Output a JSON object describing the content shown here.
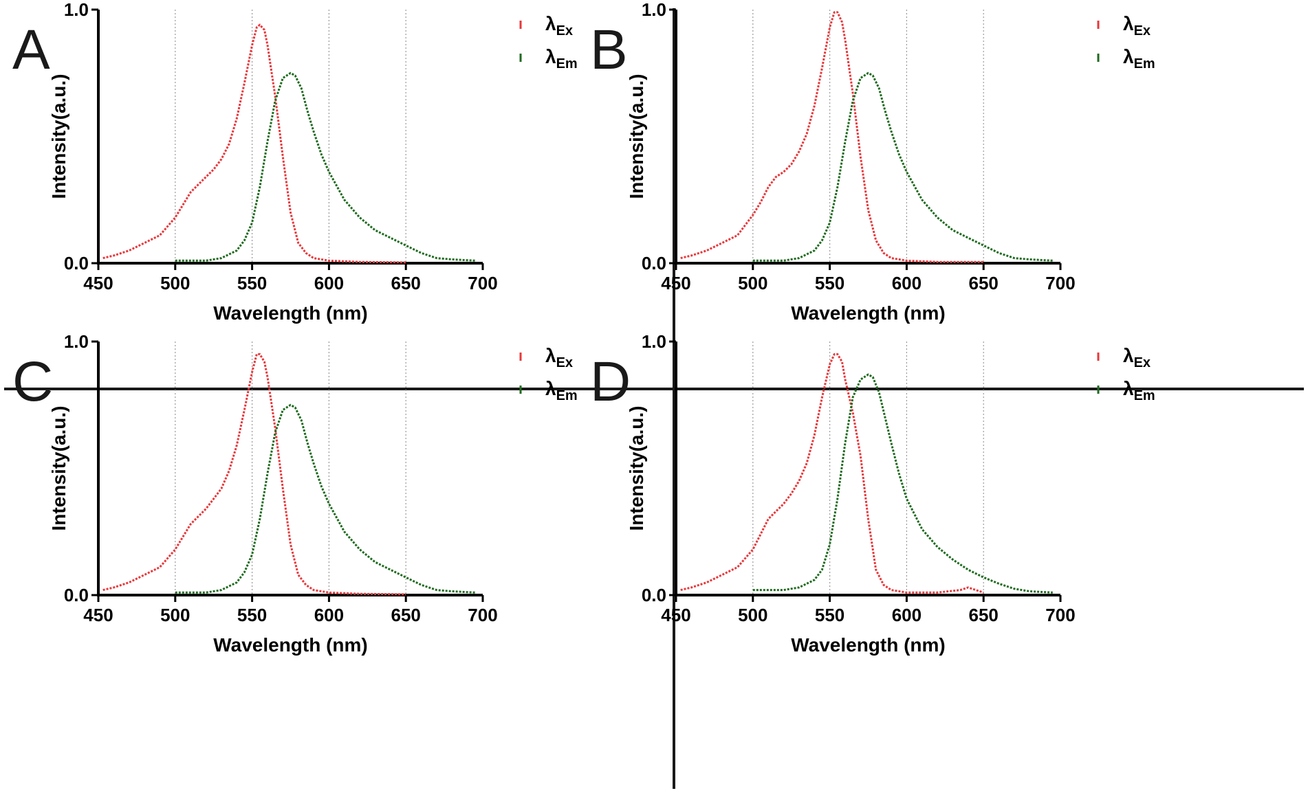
{
  "figure": {
    "colors": {
      "excitation": "#e8383b",
      "emission": "#1f6b1f",
      "axis": "#000000",
      "grid": "#999999",
      "divider": "#1a1a1a"
    }
  },
  "chart_data": [
    {
      "panel": "A",
      "type": "line",
      "xlabel": "Wavelength (nm)",
      "ylabel": "Intensity(a.u.)",
      "xlim": [
        450,
        700
      ],
      "ylim": [
        0,
        1
      ],
      "xticks": [
        "450",
        "500",
        "550",
        "600",
        "650",
        "700"
      ],
      "yticks": [
        "0.0",
        "1.0"
      ],
      "vgrid": [
        500,
        550,
        600,
        650
      ],
      "legend": [
        {
          "symbol": "λ",
          "sub": "Ex"
        },
        {
          "symbol": "λ",
          "sub": "Em"
        }
      ],
      "series": [
        {
          "name": "λEx",
          "x": [
            453,
            460,
            470,
            480,
            490,
            500,
            505,
            510,
            515,
            520,
            525,
            530,
            535,
            540,
            545,
            550,
            553,
            555,
            558,
            560,
            565,
            570,
            575,
            580,
            585,
            590,
            600,
            620,
            650
          ],
          "y": [
            0.02,
            0.03,
            0.05,
            0.08,
            0.11,
            0.18,
            0.23,
            0.28,
            0.31,
            0.34,
            0.37,
            0.41,
            0.47,
            0.57,
            0.71,
            0.86,
            0.93,
            0.94,
            0.92,
            0.86,
            0.66,
            0.42,
            0.2,
            0.08,
            0.04,
            0.02,
            0.01,
            0.005,
            0.003
          ]
        },
        {
          "name": "λEm",
          "x": [
            500,
            520,
            530,
            540,
            545,
            550,
            555,
            560,
            565,
            570,
            575,
            578,
            582,
            586,
            590,
            595,
            600,
            610,
            620,
            630,
            640,
            650,
            660,
            670,
            680,
            695
          ],
          "y": [
            0.01,
            0.01,
            0.02,
            0.05,
            0.09,
            0.16,
            0.3,
            0.48,
            0.64,
            0.73,
            0.75,
            0.74,
            0.69,
            0.6,
            0.52,
            0.43,
            0.36,
            0.25,
            0.18,
            0.13,
            0.1,
            0.07,
            0.04,
            0.02,
            0.015,
            0.01
          ]
        }
      ]
    },
    {
      "panel": "B",
      "type": "line",
      "xlabel": "Wavelength (nm)",
      "ylabel": "Intensity(a.u.)",
      "xlim": [
        450,
        700
      ],
      "ylim": [
        0,
        1
      ],
      "xticks": [
        "450",
        "500",
        "550",
        "600",
        "650",
        "700"
      ],
      "yticks": [
        "0.0",
        "1.0"
      ],
      "vgrid": [
        500,
        550,
        600,
        650
      ],
      "legend": [
        {
          "symbol": "λ",
          "sub": "Ex"
        },
        {
          "symbol": "λ",
          "sub": "Em"
        }
      ],
      "series": [
        {
          "name": "λEx",
          "x": [
            453,
            460,
            470,
            480,
            490,
            500,
            505,
            510,
            515,
            520,
            525,
            530,
            535,
            540,
            545,
            550,
            553,
            555,
            558,
            560,
            565,
            570,
            575,
            580,
            585,
            590,
            600,
            620,
            650
          ],
          "y": [
            0.02,
            0.03,
            0.05,
            0.08,
            0.11,
            0.19,
            0.24,
            0.3,
            0.34,
            0.36,
            0.39,
            0.44,
            0.51,
            0.62,
            0.77,
            0.93,
            0.99,
            0.99,
            0.95,
            0.88,
            0.67,
            0.42,
            0.21,
            0.09,
            0.04,
            0.02,
            0.01,
            0.005,
            0.005
          ]
        },
        {
          "name": "λEm",
          "x": [
            500,
            520,
            530,
            540,
            545,
            550,
            555,
            560,
            565,
            570,
            575,
            578,
            582,
            586,
            590,
            595,
            600,
            610,
            620,
            630,
            640,
            650,
            660,
            670,
            680,
            695
          ],
          "y": [
            0.01,
            0.01,
            0.02,
            0.05,
            0.09,
            0.16,
            0.3,
            0.48,
            0.64,
            0.73,
            0.75,
            0.74,
            0.69,
            0.6,
            0.52,
            0.43,
            0.36,
            0.25,
            0.18,
            0.13,
            0.1,
            0.07,
            0.04,
            0.02,
            0.015,
            0.01
          ]
        }
      ]
    },
    {
      "panel": "C",
      "type": "line",
      "xlabel": "Wavelength (nm)",
      "ylabel": "Intensity(a.u.)",
      "xlim": [
        450,
        700
      ],
      "ylim": [
        0,
        1
      ],
      "xticks": [
        "450",
        "500",
        "550",
        "600",
        "650",
        "700"
      ],
      "yticks": [
        "0.0",
        "1.0"
      ],
      "vgrid": [
        500,
        550,
        600,
        650
      ],
      "legend": [
        {
          "symbol": "λ",
          "sub": "Ex"
        },
        {
          "symbol": "λ",
          "sub": "Em"
        }
      ],
      "series": [
        {
          "name": "λEx",
          "x": [
            453,
            460,
            470,
            480,
            490,
            500,
            505,
            510,
            515,
            520,
            525,
            530,
            535,
            540,
            545,
            550,
            553,
            555,
            558,
            560,
            565,
            570,
            575,
            580,
            585,
            590,
            600,
            620,
            650
          ],
          "y": [
            0.02,
            0.03,
            0.05,
            0.08,
            0.11,
            0.18,
            0.23,
            0.28,
            0.31,
            0.34,
            0.38,
            0.42,
            0.49,
            0.59,
            0.73,
            0.88,
            0.95,
            0.95,
            0.92,
            0.86,
            0.66,
            0.42,
            0.2,
            0.08,
            0.04,
            0.02,
            0.01,
            0.005,
            0.003
          ]
        },
        {
          "name": "λEm",
          "x": [
            500,
            520,
            530,
            540,
            545,
            550,
            555,
            560,
            565,
            570,
            575,
            578,
            582,
            586,
            590,
            595,
            600,
            610,
            620,
            630,
            640,
            650,
            660,
            670,
            680,
            695
          ],
          "y": [
            0.01,
            0.01,
            0.02,
            0.05,
            0.09,
            0.16,
            0.3,
            0.48,
            0.64,
            0.73,
            0.75,
            0.74,
            0.69,
            0.6,
            0.52,
            0.43,
            0.36,
            0.25,
            0.18,
            0.13,
            0.1,
            0.07,
            0.04,
            0.02,
            0.015,
            0.01
          ]
        }
      ]
    },
    {
      "panel": "D",
      "type": "line",
      "xlabel": "Wavelength (nm)",
      "ylabel": "Intensity(a.u.)",
      "xlim": [
        450,
        700
      ],
      "ylim": [
        0,
        1
      ],
      "xticks": [
        "450",
        "500",
        "550",
        "600",
        "650",
        "700"
      ],
      "yticks": [
        "0.0",
        "1.0"
      ],
      "vgrid": [
        500,
        550,
        600,
        650
      ],
      "legend": [
        {
          "symbol": "λ",
          "sub": "Ex"
        },
        {
          "symbol": "λ",
          "sub": "Em"
        }
      ],
      "series": [
        {
          "name": "λEx",
          "x": [
            453,
            460,
            470,
            480,
            490,
            500,
            505,
            510,
            515,
            520,
            525,
            530,
            535,
            540,
            545,
            550,
            553,
            555,
            558,
            560,
            565,
            570,
            575,
            580,
            585,
            590,
            600,
            620,
            635,
            640,
            645,
            650
          ],
          "y": [
            0.02,
            0.03,
            0.05,
            0.08,
            0.11,
            0.18,
            0.24,
            0.3,
            0.33,
            0.36,
            0.4,
            0.45,
            0.52,
            0.63,
            0.78,
            0.91,
            0.95,
            0.95,
            0.92,
            0.85,
            0.72,
            0.55,
            0.3,
            0.1,
            0.04,
            0.02,
            0.01,
            0.01,
            0.02,
            0.03,
            0.02,
            0.01
          ]
        },
        {
          "name": "λEm",
          "x": [
            500,
            520,
            530,
            540,
            545,
            550,
            555,
            560,
            565,
            570,
            575,
            578,
            582,
            586,
            590,
            595,
            600,
            610,
            620,
            630,
            640,
            650,
            660,
            670,
            680,
            695
          ],
          "y": [
            0.02,
            0.02,
            0.03,
            0.06,
            0.1,
            0.2,
            0.38,
            0.6,
            0.78,
            0.85,
            0.87,
            0.86,
            0.8,
            0.7,
            0.6,
            0.48,
            0.38,
            0.26,
            0.19,
            0.14,
            0.1,
            0.07,
            0.045,
            0.025,
            0.015,
            0.01
          ]
        }
      ]
    }
  ]
}
